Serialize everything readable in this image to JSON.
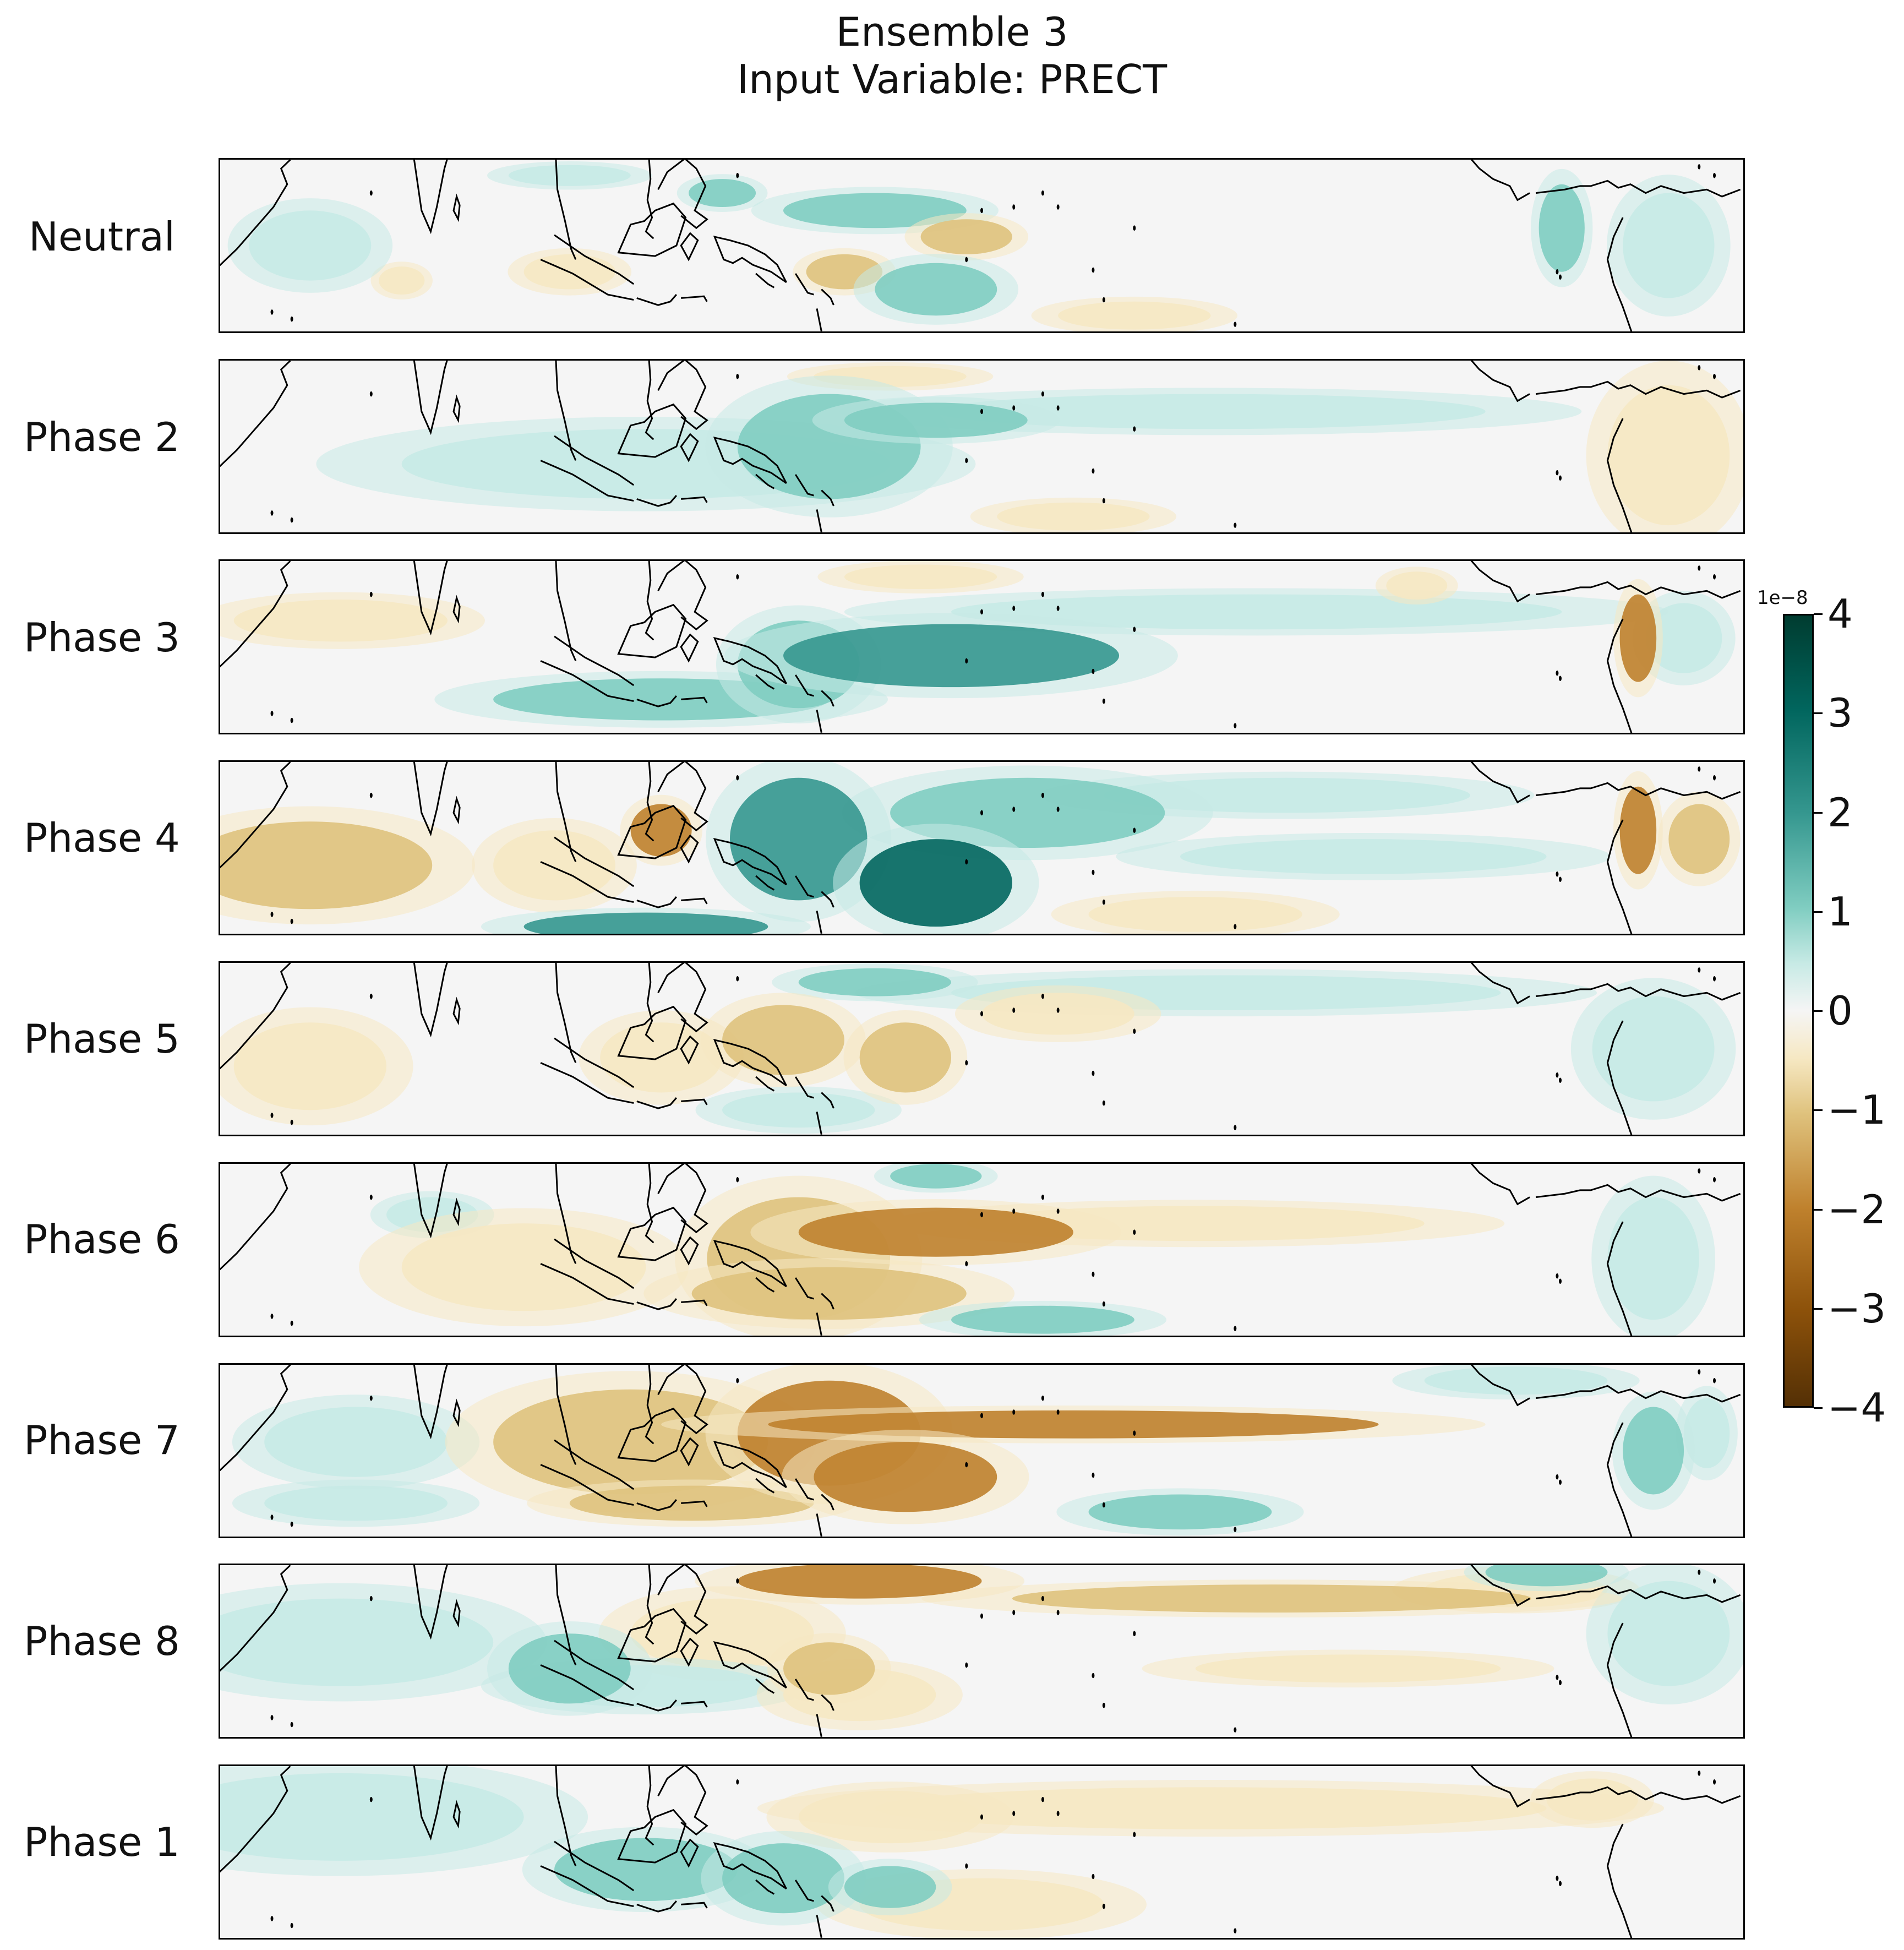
{
  "figure": {
    "title_line1": "Ensemble 3",
    "title_line2": "Input Variable: PRECT"
  },
  "colors": {
    "negative_max": "#543005",
    "neutral": "#f5f5f5",
    "positive_max": "#003c30",
    "coast": "#000000"
  },
  "chart_data": {
    "type": "heatmap",
    "colormap": "BrBG",
    "value_scale": "1e-8",
    "vmin": -4,
    "vmax": 4,
    "colorbar": {
      "exponent_label": "1e−8",
      "ticks": [
        {
          "value": 4,
          "label": "4"
        },
        {
          "value": 3,
          "label": "3"
        },
        {
          "value": 2,
          "label": "2"
        },
        {
          "value": 1,
          "label": "1"
        },
        {
          "value": 0,
          "label": "0"
        },
        {
          "value": -1,
          "label": "−1"
        },
        {
          "value": -2,
          "label": "−2"
        },
        {
          "value": -3,
          "label": "−3"
        },
        {
          "value": -4,
          "label": "−4"
        }
      ]
    },
    "panels": [
      {
        "label": "Neutral"
      },
      {
        "label": "Phase 2"
      },
      {
        "label": "Phase 3"
      },
      {
        "label": "Phase 4"
      },
      {
        "label": "Phase 5"
      },
      {
        "label": "Phase 6"
      },
      {
        "label": "Phase 7"
      },
      {
        "label": "Phase 8"
      },
      {
        "label": "Phase 1"
      }
    ]
  }
}
